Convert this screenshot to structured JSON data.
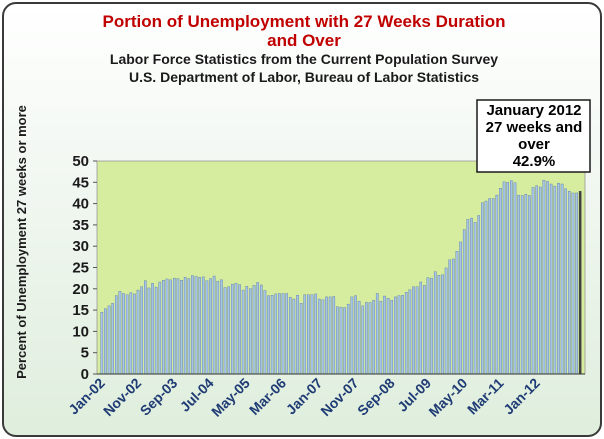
{
  "chart_data": {
    "type": "bar",
    "title": "Portion of Unemployment with 27 Weeks Duration",
    "title_line2": "and Over",
    "subtitle": "Labor Force Statistics from the Current Population Survey",
    "subtitle_line2": "U.S. Department of Labor, Bureau of Labor Statistics",
    "ylabel": "Percent of Unemployment 27 weeks or more",
    "xlabel": "",
    "ylim": [
      0,
      50
    ],
    "y_ticks": [
      0,
      5,
      10,
      15,
      20,
      25,
      30,
      35,
      40,
      45,
      50
    ],
    "x_tick_labels": [
      "Jan-02",
      "Nov-02",
      "Sep-03",
      "Jul-04",
      "May-05",
      "Mar-06",
      "Jan-07",
      "Nov-07",
      "Sep-08",
      "Jul-09",
      "May-10",
      "Mar-11",
      "Jan-12"
    ],
    "x_tick_interval_months": 10,
    "start_month": "Jan-02",
    "end_month": "Jan-12",
    "grid": false,
    "plot_background": "#d6ec9e",
    "bar_color": "#a7c4e6",
    "bar_edge_color": "#4a6f9f",
    "last_bar_color": "#404040",
    "annotation": {
      "line1": "January 2012",
      "line2": "27 weeks and",
      "line3": "over",
      "line4": "42.9%"
    },
    "values": [
      14.5,
      15.3,
      16.0,
      16.6,
      18.4,
      19.4,
      18.9,
      18.6,
      19.1,
      18.8,
      19.7,
      20.5,
      21.9,
      20.2,
      21.3,
      20.4,
      21.6,
      22.0,
      22.3,
      22.1,
      22.5,
      22.4,
      22.0,
      22.7,
      22.4,
      23.1,
      22.9,
      22.7,
      22.8,
      21.9,
      22.4,
      23.0,
      21.8,
      22.1,
      20.3,
      20.5,
      21.1,
      21.3,
      21.0,
      19.7,
      20.6,
      20.0,
      20.8,
      21.5,
      20.9,
      19.6,
      18.4,
      18.5,
      18.8,
      18.9,
      18.9,
      18.9,
      18.0,
      17.6,
      18.5,
      16.6,
      18.6,
      18.6,
      18.6,
      18.8,
      17.6,
      17.4,
      18.1,
      18.1,
      18.2,
      15.8,
      15.7,
      15.6,
      16.4,
      18.1,
      18.4,
      17.1,
      16.0,
      16.8,
      16.8,
      17.3,
      18.9,
      17.1,
      18.3,
      17.8,
      17.3,
      18.1,
      18.4,
      18.5,
      19.2,
      19.8,
      20.5,
      20.5,
      21.6,
      20.8,
      22.6,
      22.5,
      24.0,
      23.2,
      23.3,
      24.9,
      26.8,
      27.0,
      28.8,
      31.0,
      33.9,
      36.3,
      36.6,
      35.6,
      37.2,
      40.2,
      40.6,
      41.2,
      41.2,
      42.0,
      43.6,
      45.1,
      45.0,
      45.4,
      44.9,
      42.0,
      41.9,
      42.2,
      41.9,
      43.8,
      44.2,
      43.9,
      45.5,
      45.2,
      44.6,
      44.1,
      44.8,
      44.6,
      43.5,
      42.9,
      42.5,
      42.5,
      42.9
    ]
  }
}
